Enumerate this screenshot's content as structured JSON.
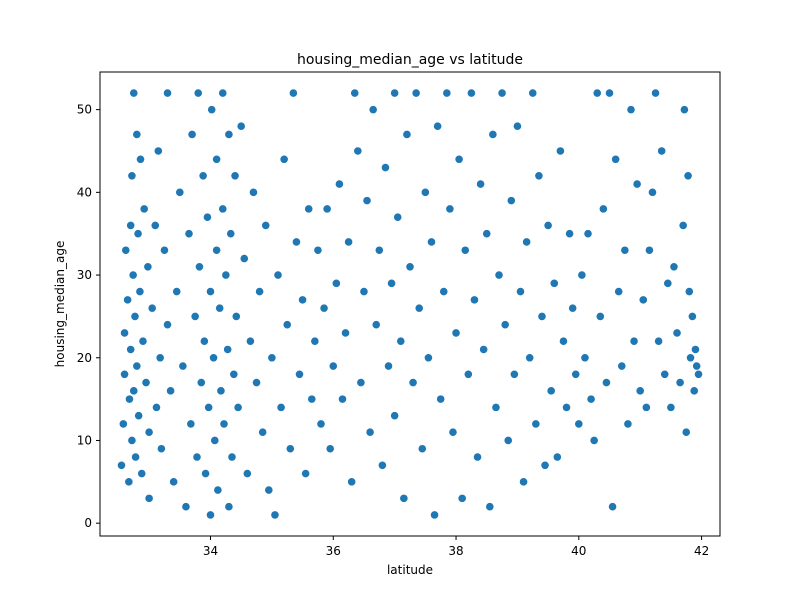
{
  "chart_data": {
    "type": "scatter",
    "title": "housing_median_age vs latitude",
    "xlabel": "latitude",
    "ylabel": "housing_median_age",
    "xlim": [
      32.2,
      42.3
    ],
    "ylim": [
      -1.55,
      54.55
    ],
    "xticks": [
      34,
      36,
      38,
      40,
      42
    ],
    "yticks": [
      0,
      10,
      20,
      30,
      40,
      50
    ],
    "grid": false,
    "legend": "none",
    "marker_color": "#1f77b4",
    "marker_edge_color": "#ffffff",
    "series": [
      {
        "points": [
          [
            32.55,
            7
          ],
          [
            32.58,
            12
          ],
          [
            32.6,
            18
          ],
          [
            32.6,
            23
          ],
          [
            32.62,
            33
          ],
          [
            32.65,
            27
          ],
          [
            32.67,
            5
          ],
          [
            32.68,
            15
          ],
          [
            32.7,
            21
          ],
          [
            32.7,
            36
          ],
          [
            32.72,
            10
          ],
          [
            32.72,
            42
          ],
          [
            32.74,
            30
          ],
          [
            32.75,
            16
          ],
          [
            32.75,
            52
          ],
          [
            32.77,
            25
          ],
          [
            32.78,
            8
          ],
          [
            32.8,
            47
          ],
          [
            32.8,
            19
          ],
          [
            32.82,
            35
          ],
          [
            32.83,
            13
          ],
          [
            32.85,
            28
          ],
          [
            32.86,
            44
          ],
          [
            32.88,
            6
          ],
          [
            32.9,
            22
          ],
          [
            32.92,
            38
          ],
          [
            32.95,
            17
          ],
          [
            32.98,
            31
          ],
          [
            33.0,
            11
          ],
          [
            33.0,
            3
          ],
          [
            33.05,
            26
          ],
          [
            33.1,
            36
          ],
          [
            33.12,
            14
          ],
          [
            33.15,
            45
          ],
          [
            33.18,
            20
          ],
          [
            33.2,
            9
          ],
          [
            33.25,
            33
          ],
          [
            33.3,
            24
          ],
          [
            33.3,
            52
          ],
          [
            33.35,
            16
          ],
          [
            33.4,
            5
          ],
          [
            33.45,
            28
          ],
          [
            33.5,
            40
          ],
          [
            33.55,
            19
          ],
          [
            33.6,
            2
          ],
          [
            33.65,
            35
          ],
          [
            33.68,
            12
          ],
          [
            33.7,
            47
          ],
          [
            33.75,
            25
          ],
          [
            33.78,
            8
          ],
          [
            33.8,
            52
          ],
          [
            33.82,
            31
          ],
          [
            33.85,
            17
          ],
          [
            33.88,
            42
          ],
          [
            33.9,
            22
          ],
          [
            33.92,
            6
          ],
          [
            33.95,
            37
          ],
          [
            33.97,
            14
          ],
          [
            34.0,
            28
          ],
          [
            34.0,
            1
          ],
          [
            34.02,
            50
          ],
          [
            34.05,
            20
          ],
          [
            34.07,
            10
          ],
          [
            34.1,
            44
          ],
          [
            34.1,
            33
          ],
          [
            34.12,
            4
          ],
          [
            34.15,
            26
          ],
          [
            34.17,
            16
          ],
          [
            34.2,
            52
          ],
          [
            34.2,
            38
          ],
          [
            34.22,
            12
          ],
          [
            34.25,
            30
          ],
          [
            34.28,
            21
          ],
          [
            34.3,
            47
          ],
          [
            34.3,
            2
          ],
          [
            34.33,
            35
          ],
          [
            34.35,
            8
          ],
          [
            34.38,
            18
          ],
          [
            34.4,
            42
          ],
          [
            34.42,
            25
          ],
          [
            34.45,
            14
          ],
          [
            34.5,
            48
          ],
          [
            34.55,
            32
          ],
          [
            34.6,
            6
          ],
          [
            34.65,
            22
          ],
          [
            34.7,
            40
          ],
          [
            34.75,
            17
          ],
          [
            34.8,
            28
          ],
          [
            34.85,
            11
          ],
          [
            34.9,
            36
          ],
          [
            34.95,
            4
          ],
          [
            35.0,
            20
          ],
          [
            35.05,
            1
          ],
          [
            35.1,
            30
          ],
          [
            35.15,
            14
          ],
          [
            35.2,
            44
          ],
          [
            35.25,
            24
          ],
          [
            35.3,
            9
          ],
          [
            35.35,
            52
          ],
          [
            35.4,
            34
          ],
          [
            35.45,
            18
          ],
          [
            35.5,
            27
          ],
          [
            35.55,
            6
          ],
          [
            35.6,
            38
          ],
          [
            35.65,
            15
          ],
          [
            35.7,
            22
          ],
          [
            35.75,
            33
          ],
          [
            35.8,
            12
          ],
          [
            35.85,
            26
          ],
          [
            35.9,
            38
          ],
          [
            35.95,
            9
          ],
          [
            36.0,
            19
          ],
          [
            36.05,
            29
          ],
          [
            36.1,
            41
          ],
          [
            36.15,
            15
          ],
          [
            36.2,
            23
          ],
          [
            36.25,
            34
          ],
          [
            36.3,
            5
          ],
          [
            36.35,
            52
          ],
          [
            36.4,
            45
          ],
          [
            36.45,
            17
          ],
          [
            36.5,
            28
          ],
          [
            36.55,
            39
          ],
          [
            36.6,
            11
          ],
          [
            36.65,
            50
          ],
          [
            36.7,
            24
          ],
          [
            36.75,
            33
          ],
          [
            36.8,
            7
          ],
          [
            36.85,
            43
          ],
          [
            36.9,
            19
          ],
          [
            36.95,
            29
          ],
          [
            37.0,
            52
          ],
          [
            37.0,
            13
          ],
          [
            37.05,
            37
          ],
          [
            37.1,
            22
          ],
          [
            37.15,
            3
          ],
          [
            37.2,
            47
          ],
          [
            37.25,
            31
          ],
          [
            37.3,
            17
          ],
          [
            37.35,
            52
          ],
          [
            37.4,
            26
          ],
          [
            37.45,
            9
          ],
          [
            37.5,
            40
          ],
          [
            37.55,
            20
          ],
          [
            37.6,
            34
          ],
          [
            37.65,
            1
          ],
          [
            37.7,
            48
          ],
          [
            37.75,
            15
          ],
          [
            37.8,
            28
          ],
          [
            37.85,
            52
          ],
          [
            37.9,
            38
          ],
          [
            37.95,
            11
          ],
          [
            38.0,
            23
          ],
          [
            38.05,
            44
          ],
          [
            38.1,
            3
          ],
          [
            38.15,
            33
          ],
          [
            38.2,
            18
          ],
          [
            38.25,
            52
          ],
          [
            38.3,
            27
          ],
          [
            38.35,
            8
          ],
          [
            38.4,
            41
          ],
          [
            38.45,
            21
          ],
          [
            38.5,
            35
          ],
          [
            38.55,
            2
          ],
          [
            38.6,
            47
          ],
          [
            38.65,
            14
          ],
          [
            38.7,
            30
          ],
          [
            38.75,
            52
          ],
          [
            38.8,
            24
          ],
          [
            38.85,
            10
          ],
          [
            38.9,
            39
          ],
          [
            38.95,
            18
          ],
          [
            39.0,
            48
          ],
          [
            39.05,
            28
          ],
          [
            39.1,
            5
          ],
          [
            39.15,
            34
          ],
          [
            39.2,
            20
          ],
          [
            39.25,
            52
          ],
          [
            39.3,
            12
          ],
          [
            39.35,
            42
          ],
          [
            39.4,
            25
          ],
          [
            39.45,
            7
          ],
          [
            39.5,
            36
          ],
          [
            39.55,
            16
          ],
          [
            39.6,
            29
          ],
          [
            39.65,
            8
          ],
          [
            39.7,
            45
          ],
          [
            39.75,
            22
          ],
          [
            39.8,
            14
          ],
          [
            39.85,
            35
          ],
          [
            39.9,
            26
          ],
          [
            39.95,
            18
          ],
          [
            40.0,
            12
          ],
          [
            40.05,
            30
          ],
          [
            40.1,
            20
          ],
          [
            40.15,
            35
          ],
          [
            40.2,
            15
          ],
          [
            40.25,
            10
          ],
          [
            40.3,
            52
          ],
          [
            40.35,
            25
          ],
          [
            40.4,
            38
          ],
          [
            40.45,
            17
          ],
          [
            40.5,
            52
          ],
          [
            40.55,
            2
          ],
          [
            40.6,
            44
          ],
          [
            40.65,
            28
          ],
          [
            40.7,
            19
          ],
          [
            40.75,
            33
          ],
          [
            40.8,
            12
          ],
          [
            40.85,
            50
          ],
          [
            40.9,
            22
          ],
          [
            40.95,
            41
          ],
          [
            41.0,
            16
          ],
          [
            41.05,
            27
          ],
          [
            41.1,
            14
          ],
          [
            41.15,
            33
          ],
          [
            41.2,
            40
          ],
          [
            41.25,
            52
          ],
          [
            41.3,
            22
          ],
          [
            41.35,
            45
          ],
          [
            41.4,
            18
          ],
          [
            41.45,
            29
          ],
          [
            41.5,
            14
          ],
          [
            41.55,
            31
          ],
          [
            41.6,
            23
          ],
          [
            41.65,
            17
          ],
          [
            41.7,
            36
          ],
          [
            41.72,
            50
          ],
          [
            41.75,
            11
          ],
          [
            41.78,
            42
          ],
          [
            41.8,
            28
          ],
          [
            41.82,
            20
          ],
          [
            41.85,
            25
          ],
          [
            41.88,
            16
          ],
          [
            41.9,
            21
          ],
          [
            41.92,
            19
          ],
          [
            41.95,
            18
          ]
        ]
      }
    ]
  }
}
